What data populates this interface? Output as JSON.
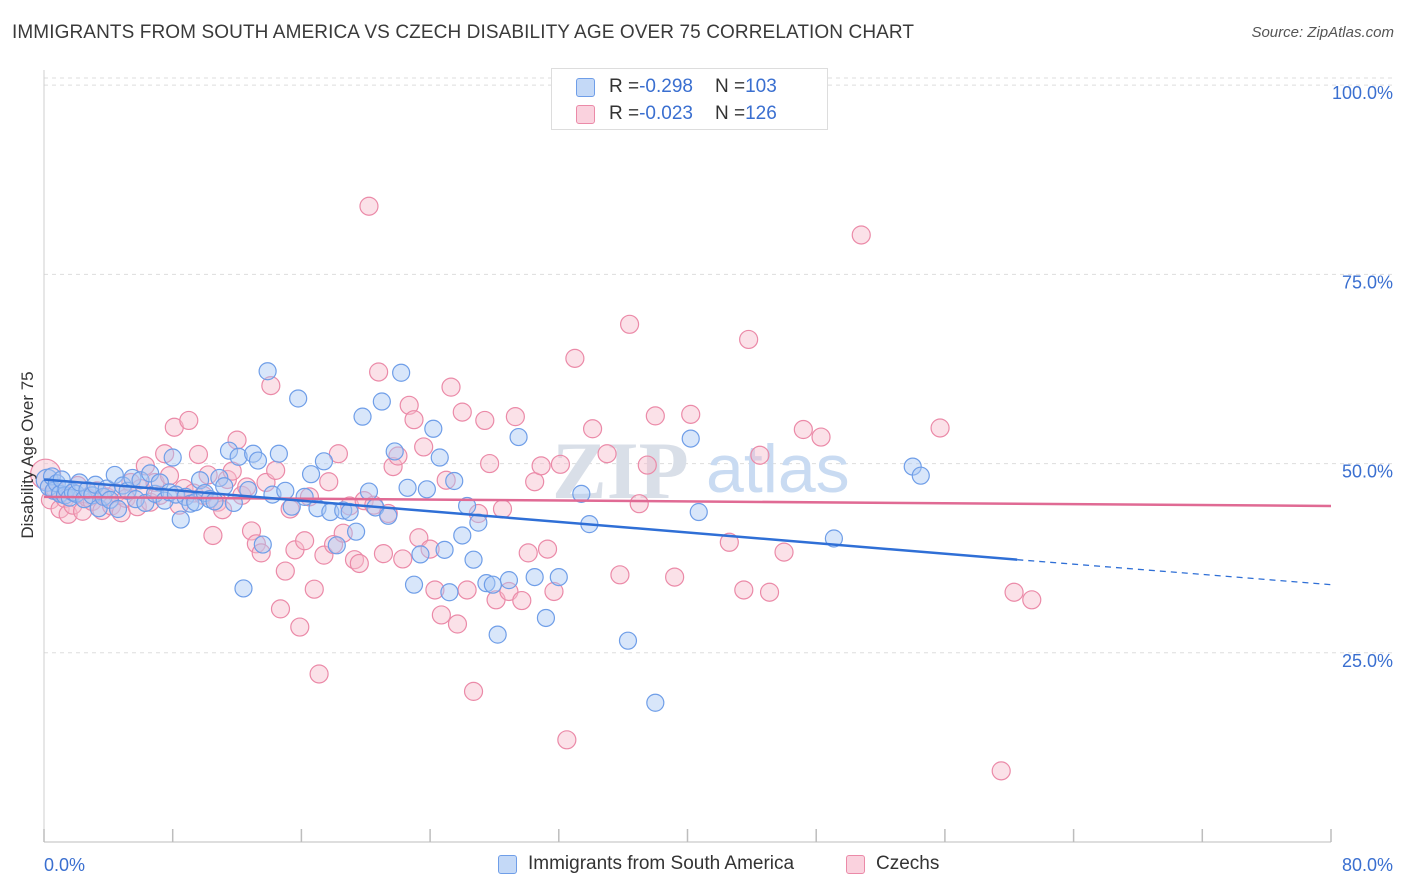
{
  "header": {
    "title": "IMMIGRANTS FROM SOUTH AMERICA VS CZECH DISABILITY AGE OVER 75 CORRELATION CHART",
    "source": "Source: ZipAtlas.com"
  },
  "watermark": {
    "zip": "ZIP",
    "atlas": "atlas"
  },
  "legend": {
    "stats": [
      {
        "r_label": "R = ",
        "r_value": "-0.298",
        "n_label": "N = ",
        "n_value": "103"
      },
      {
        "r_label": "R = ",
        "r_value": "-0.023",
        "n_label": "N = ",
        "n_value": "126"
      }
    ],
    "series": [
      "Immigrants from South America",
      "Czechs"
    ]
  },
  "colors": {
    "blue_fill": "#a9c8f5",
    "blue_stroke": "#6f9ee8",
    "blue_line": "#2f6fd6",
    "pink_fill": "#f7bccc",
    "pink_stroke": "#eb8aa8",
    "pink_line": "#e06a94",
    "axis_label": "#3a6fd0",
    "grid": "#dddddd"
  },
  "chart_data": {
    "type": "scatter",
    "title": "IMMIGRANTS FROM SOUTH AMERICA VS CZECH DISABILITY AGE OVER 75 CORRELATION CHART",
    "xlabel": "",
    "ylabel": "Disability Age Over 75",
    "xlim": [
      0,
      80
    ],
    "ylim": [
      0,
      102
    ],
    "x_tick_labels": [
      "0.0%",
      "80.0%"
    ],
    "y_ticks": [
      25,
      50,
      75,
      100
    ],
    "y_tick_labels": [
      "25.0%",
      "50.0%",
      "75.0%",
      "100.0%"
    ],
    "grid": true,
    "legend_position": "top-center",
    "series": [
      {
        "name": "Immigrants from South America",
        "r": -0.298,
        "n": 103,
        "trend": {
          "x0": 0,
          "y0": 47.9,
          "x1": 60.5,
          "y1": 37.3,
          "dash_x1": 80,
          "dash_y1": 34.0
        },
        "points": [
          [
            0.2,
            47.8
          ],
          [
            0.3,
            46.9
          ],
          [
            0.5,
            48.3
          ],
          [
            0.6,
            46.4
          ],
          [
            0.8,
            47.4
          ],
          [
            1.0,
            46.0
          ],
          [
            1.1,
            47.9
          ],
          [
            1.3,
            45.8
          ],
          [
            1.4,
            46.6
          ],
          [
            1.6,
            45.5
          ],
          [
            1.8,
            46.2
          ],
          [
            2.0,
            46.0
          ],
          [
            2.2,
            47.5
          ],
          [
            2.5,
            45.3
          ],
          [
            2.7,
            46.5
          ],
          [
            3.0,
            45.8
          ],
          [
            3.2,
            47.2
          ],
          [
            3.4,
            44.1
          ],
          [
            3.7,
            45.6
          ],
          [
            3.9,
            46.7
          ],
          [
            4.1,
            45.2
          ],
          [
            4.4,
            48.5
          ],
          [
            4.6,
            44.0
          ],
          [
            4.9,
            47.1
          ],
          [
            5.2,
            46.4
          ],
          [
            5.5,
            48.1
          ],
          [
            5.7,
            45.3
          ],
          [
            6.0,
            47.8
          ],
          [
            6.3,
            44.8
          ],
          [
            6.6,
            48.7
          ],
          [
            6.9,
            46.0
          ],
          [
            7.2,
            47.5
          ],
          [
            7.5,
            45.1
          ],
          [
            7.8,
            46.2
          ],
          [
            8.0,
            50.8
          ],
          [
            8.2,
            45.9
          ],
          [
            8.5,
            42.6
          ],
          [
            8.8,
            45.6
          ],
          [
            9.1,
            44.7
          ],
          [
            9.4,
            44.9
          ],
          [
            9.7,
            47.8
          ],
          [
            10.0,
            46.1
          ],
          [
            10.3,
            45.3
          ],
          [
            10.6,
            45.0
          ],
          [
            10.9,
            48.1
          ],
          [
            11.2,
            47.0
          ],
          [
            11.5,
            51.7
          ],
          [
            11.8,
            44.8
          ],
          [
            12.1,
            50.9
          ],
          [
            12.4,
            33.5
          ],
          [
            12.7,
            46.5
          ],
          [
            13.0,
            51.3
          ],
          [
            13.3,
            50.4
          ],
          [
            13.6,
            39.3
          ],
          [
            13.9,
            62.2
          ],
          [
            14.2,
            45.9
          ],
          [
            14.6,
            51.3
          ],
          [
            15.0,
            46.4
          ],
          [
            15.4,
            44.3
          ],
          [
            15.8,
            58.6
          ],
          [
            16.2,
            45.6
          ],
          [
            16.6,
            48.6
          ],
          [
            17.0,
            44.1
          ],
          [
            17.4,
            50.3
          ],
          [
            17.8,
            43.6
          ],
          [
            18.2,
            39.2
          ],
          [
            18.6,
            43.8
          ],
          [
            19.0,
            43.6
          ],
          [
            19.4,
            41.0
          ],
          [
            19.8,
            56.2
          ],
          [
            20.2,
            46.3
          ],
          [
            20.6,
            44.2
          ],
          [
            21.0,
            58.2
          ],
          [
            21.4,
            43.1
          ],
          [
            21.8,
            51.6
          ],
          [
            22.2,
            62.0
          ],
          [
            22.6,
            46.8
          ],
          [
            23.0,
            34.0
          ],
          [
            23.4,
            38.0
          ],
          [
            23.8,
            46.6
          ],
          [
            24.2,
            54.6
          ],
          [
            24.6,
            50.8
          ],
          [
            24.9,
            38.6
          ],
          [
            25.2,
            33.0
          ],
          [
            25.5,
            47.7
          ],
          [
            26.0,
            40.5
          ],
          [
            26.3,
            44.4
          ],
          [
            26.7,
            37.3
          ],
          [
            27.0,
            42.2
          ],
          [
            27.5,
            34.2
          ],
          [
            27.9,
            34.0
          ],
          [
            28.2,
            27.4
          ],
          [
            28.9,
            34.6
          ],
          [
            29.5,
            53.5
          ],
          [
            30.5,
            35.0
          ],
          [
            31.2,
            29.6
          ],
          [
            32.0,
            35.0
          ],
          [
            33.4,
            46.0
          ],
          [
            33.9,
            42.0
          ],
          [
            36.3,
            26.6
          ],
          [
            38.0,
            18.4
          ],
          [
            40.2,
            53.3
          ],
          [
            40.7,
            43.6
          ],
          [
            49.1,
            40.1
          ],
          [
            54.0,
            49.6
          ],
          [
            54.5,
            48.4
          ]
        ]
      },
      {
        "name": "Czechs",
        "r": -0.023,
        "n": 126,
        "trend": {
          "x0": 0,
          "y0": 45.6,
          "x1": 80,
          "y1": 44.4
        },
        "points": [
          [
            0.1,
            48.6
          ],
          [
            0.4,
            45.2
          ],
          [
            0.7,
            46.6
          ],
          [
            1.0,
            44.0
          ],
          [
            1.3,
            45.4
          ],
          [
            1.5,
            43.3
          ],
          [
            1.8,
            44.5
          ],
          [
            2.1,
            47.1
          ],
          [
            2.4,
            43.7
          ],
          [
            2.7,
            45.5
          ],
          [
            3.0,
            45.0
          ],
          [
            3.3,
            46.4
          ],
          [
            3.6,
            43.8
          ],
          [
            3.9,
            45.6
          ],
          [
            4.2,
            44.4
          ],
          [
            4.5,
            46.1
          ],
          [
            4.8,
            43.5
          ],
          [
            5.1,
            45.4
          ],
          [
            5.4,
            47.5
          ],
          [
            5.8,
            44.3
          ],
          [
            6.0,
            46.7
          ],
          [
            6.3,
            49.7
          ],
          [
            6.6,
            44.9
          ],
          [
            6.9,
            47.5
          ],
          [
            7.2,
            45.8
          ],
          [
            7.5,
            51.3
          ],
          [
            7.8,
            48.4
          ],
          [
            8.1,
            54.8
          ],
          [
            8.4,
            44.5
          ],
          [
            8.7,
            46.7
          ],
          [
            9.0,
            55.7
          ],
          [
            9.3,
            46.1
          ],
          [
            9.6,
            51.2
          ],
          [
            9.9,
            45.8
          ],
          [
            10.2,
            48.5
          ],
          [
            10.5,
            40.5
          ],
          [
            10.8,
            44.9
          ],
          [
            11.1,
            43.9
          ],
          [
            11.4,
            47.9
          ],
          [
            11.7,
            49.0
          ],
          [
            12.0,
            53.1
          ],
          [
            12.3,
            45.8
          ],
          [
            12.6,
            46.9
          ],
          [
            12.9,
            41.1
          ],
          [
            13.2,
            39.4
          ],
          [
            13.5,
            38.2
          ],
          [
            13.8,
            47.5
          ],
          [
            14.1,
            60.3
          ],
          [
            14.4,
            49.1
          ],
          [
            14.7,
            30.8
          ],
          [
            15.0,
            35.8
          ],
          [
            15.3,
            44.0
          ],
          [
            15.6,
            38.6
          ],
          [
            15.9,
            28.4
          ],
          [
            16.2,
            39.8
          ],
          [
            16.5,
            45.6
          ],
          [
            16.8,
            33.4
          ],
          [
            17.1,
            22.2
          ],
          [
            17.4,
            37.9
          ],
          [
            17.7,
            47.6
          ],
          [
            18.0,
            39.3
          ],
          [
            18.3,
            51.3
          ],
          [
            18.6,
            40.8
          ],
          [
            19.0,
            44.4
          ],
          [
            19.3,
            37.3
          ],
          [
            19.6,
            36.8
          ],
          [
            19.9,
            45.1
          ],
          [
            20.2,
            84.0
          ],
          [
            20.5,
            44.5
          ],
          [
            20.8,
            62.1
          ],
          [
            21.1,
            38.1
          ],
          [
            21.4,
            43.4
          ],
          [
            21.7,
            49.6
          ],
          [
            22.0,
            51.0
          ],
          [
            22.3,
            37.4
          ],
          [
            22.7,
            57.7
          ],
          [
            23.0,
            55.8
          ],
          [
            23.3,
            40.2
          ],
          [
            23.6,
            52.2
          ],
          [
            24.0,
            38.7
          ],
          [
            24.3,
            33.3
          ],
          [
            24.7,
            30.0
          ],
          [
            25.0,
            47.8
          ],
          [
            25.3,
            60.1
          ],
          [
            25.7,
            28.8
          ],
          [
            26.0,
            56.8
          ],
          [
            26.3,
            33.3
          ],
          [
            26.7,
            19.9
          ],
          [
            27.0,
            43.4
          ],
          [
            27.4,
            55.7
          ],
          [
            27.7,
            50.0
          ],
          [
            28.1,
            32.0
          ],
          [
            28.5,
            44.0
          ],
          [
            28.9,
            33.1
          ],
          [
            29.3,
            56.2
          ],
          [
            29.7,
            31.9
          ],
          [
            30.1,
            38.2
          ],
          [
            30.5,
            47.6
          ],
          [
            30.9,
            49.7
          ],
          [
            31.3,
            38.7
          ],
          [
            31.7,
            33.1
          ],
          [
            32.1,
            49.9
          ],
          [
            32.5,
            13.5
          ],
          [
            33.0,
            63.9
          ],
          [
            34.1,
            54.6
          ],
          [
            35.0,
            51.3
          ],
          [
            35.8,
            35.3
          ],
          [
            36.4,
            68.4
          ],
          [
            37.0,
            44.7
          ],
          [
            37.5,
            49.8
          ],
          [
            38.0,
            56.3
          ],
          [
            39.2,
            35.0
          ],
          [
            40.2,
            56.5
          ],
          [
            42.6,
            39.6
          ],
          [
            43.5,
            33.3
          ],
          [
            43.8,
            66.4
          ],
          [
            44.5,
            51.1
          ],
          [
            45.1,
            33.0
          ],
          [
            46.0,
            38.3
          ],
          [
            47.2,
            54.5
          ],
          [
            48.3,
            53.5
          ],
          [
            50.8,
            80.2
          ],
          [
            55.7,
            54.7
          ],
          [
            59.5,
            9.4
          ],
          [
            60.3,
            33.0
          ],
          [
            61.4,
            32.0
          ]
        ]
      }
    ]
  }
}
